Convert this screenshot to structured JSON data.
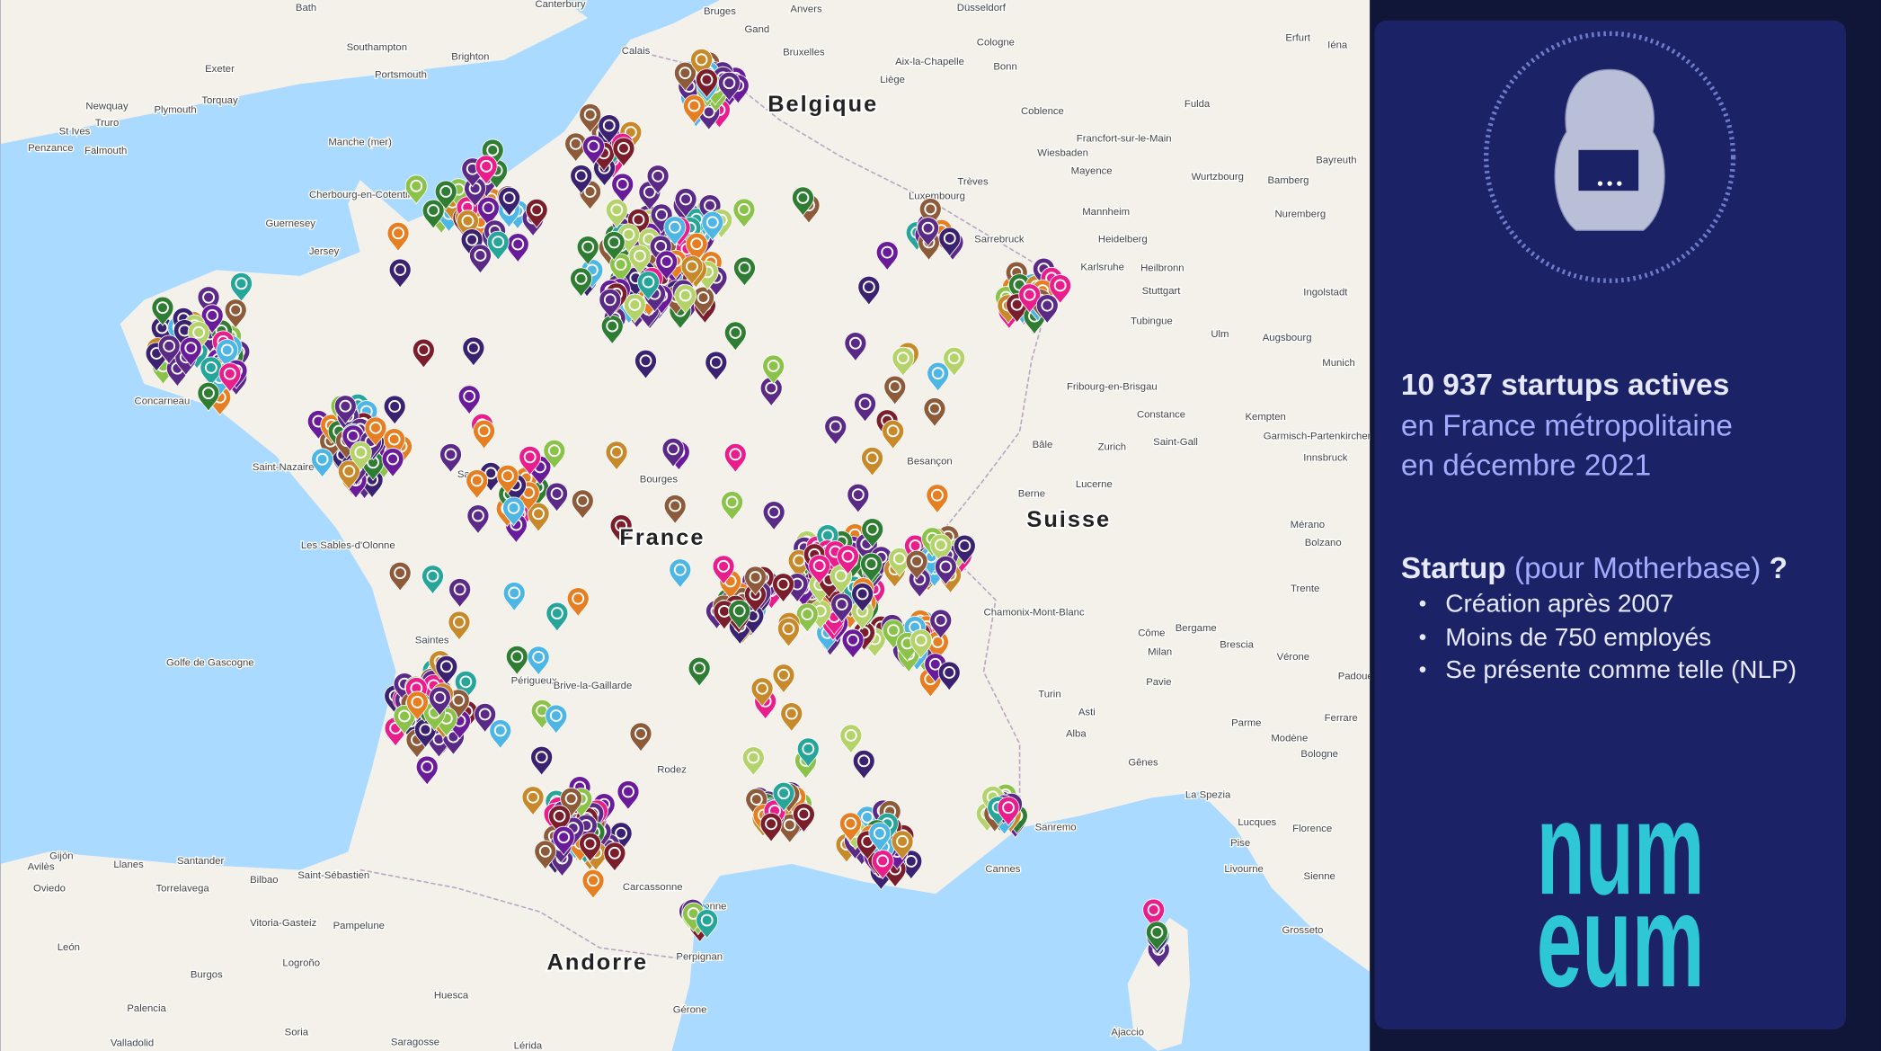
{
  "map": {
    "countries": [
      "Belgique",
      "Suisse",
      "France",
      "Andorre"
    ],
    "places": [
      "Bath",
      "Canterbury",
      "Bruges",
      "Anvers",
      "Düsseldorf",
      "Erfurt",
      "Iéna",
      "Gand",
      "Bruxelles",
      "Cologne",
      "Southampton",
      "Brighton",
      "Exeter",
      "Portsmouth",
      "Calais",
      "Aix-la-Chapelle",
      "Bonn",
      "Liège",
      "Plymouth",
      "Torquay",
      "Newquay",
      "Truro",
      "St Ives",
      "Penzance",
      "Falmouth",
      "Coblence",
      "Fulda",
      "Manche (mer)",
      "Francfort-sur-le-Main",
      "Wiesbaden",
      "Mayence",
      "Bayreuth",
      "Wurtzbourg",
      "Bamberg",
      "Trèves",
      "Luxembourg",
      "Cherbourg-en-Cotentin",
      "Nuremberg",
      "Mannheim",
      "Guernesey",
      "Heidelberg",
      "Sarrebruck",
      "Jersey",
      "Karlsruhe",
      "Heilbronn",
      "Stuttgart",
      "Ingolstadt",
      "Tubingue",
      "Ulm",
      "Augsbourg",
      "Munich",
      "Fribourg-en-Brisgau",
      "Concarneau",
      "Constance",
      "Kempten",
      "Innsbruck",
      "Saint-Gall",
      "Zurich",
      "Bâle",
      "Garmisch-Partenkirchen",
      "Saint-Nazaire",
      "Saumur",
      "Besançon",
      "Bourges",
      "Berne",
      "Lucerne",
      "Mérano",
      "Bolzano",
      "Les Sables-d'Olonne",
      "Trente",
      "Chamonix-Mont-Blanc",
      "Bergame",
      "Brescia",
      "Côme",
      "Vérone",
      "Milan",
      "Saintes",
      "Golfe de Gascogne",
      "Périgueux",
      "Brive-la-Gaillarde",
      "Pavie",
      "Padoue",
      "Turin",
      "Asti",
      "Alba",
      "Parme",
      "Ferrare",
      "Modène",
      "Bologne",
      "Gênes",
      "Rodez",
      "La Spezia",
      "Lucques",
      "Florence",
      "Pise",
      "Livourne",
      "Sanremo",
      "Cannes",
      "Sienne",
      "Gijón",
      "Avilès",
      "Oviedo",
      "Llanes",
      "Santander",
      "Torrelavega",
      "Bilbao",
      "Saint-Sébastien",
      "Carcassonne",
      "Narbonne",
      "Vitoria-Gasteiz",
      "Pampelune",
      "Grosseto",
      "Perpignan",
      "León",
      "Logroño",
      "Burgos",
      "Huesca",
      "Palencia",
      "Gérone",
      "Ajaccio",
      "Soria",
      "Valladolid",
      "Saragosse",
      "Lérida"
    ]
  },
  "panel": {
    "headline": "10 937 startups actives",
    "line2": "en France métropolitaine",
    "line3": "en décembre 2021",
    "definition_term": "Startup",
    "definition_note": "(pour Motherbase)",
    "definition_mark": "?",
    "bullets": [
      "Création après 2007",
      "Moins de 750 employés",
      "Se présente comme telle (NLP)"
    ],
    "logo_top": "num",
    "logo_bottom": "eum"
  }
}
